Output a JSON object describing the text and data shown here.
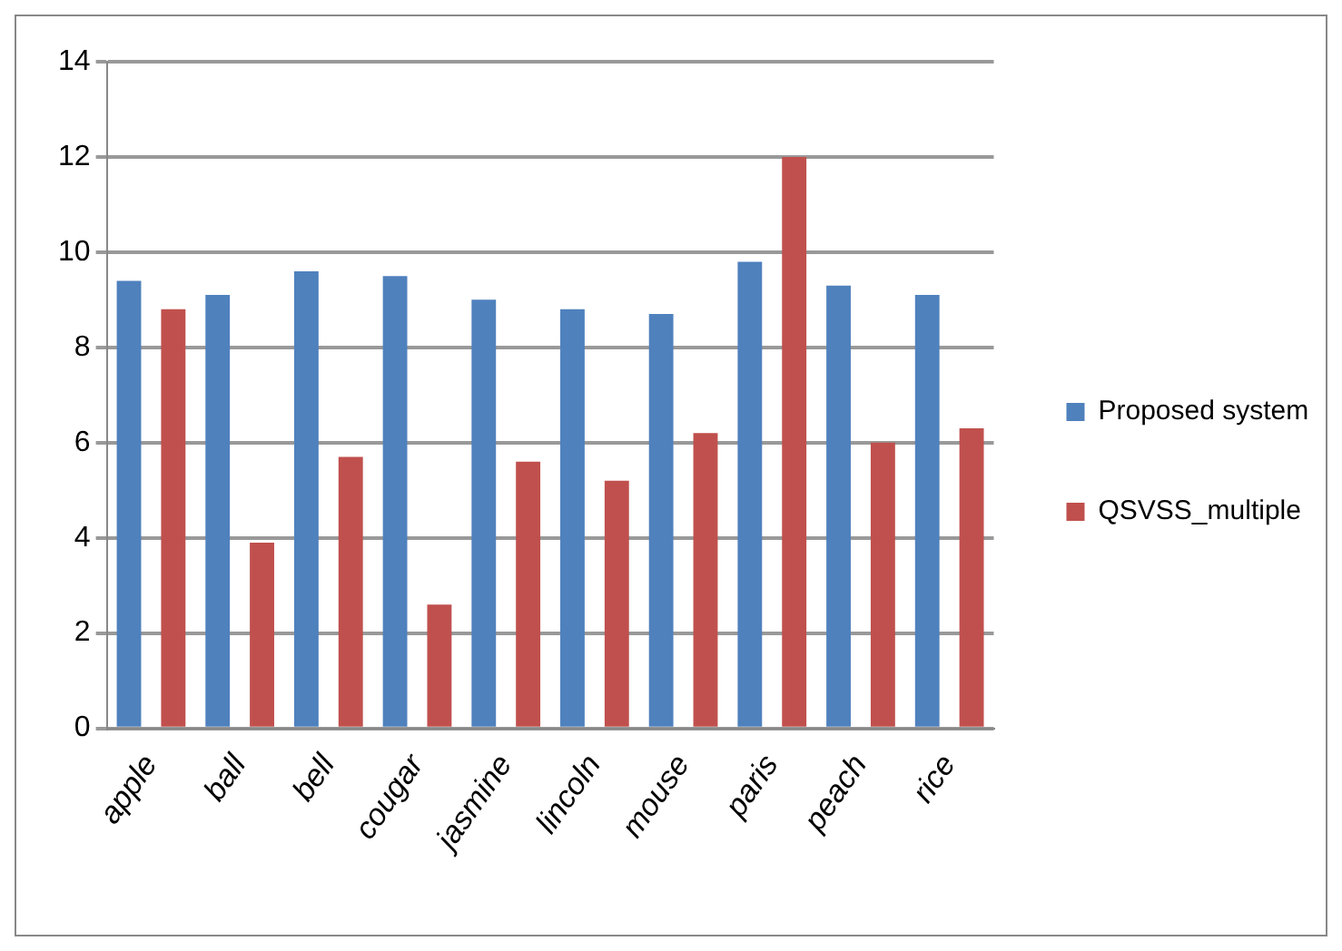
{
  "chart_data": {
    "type": "bar",
    "categories": [
      "apple",
      "ball",
      "bell",
      "cougar",
      "jasmine",
      "lincoln",
      "mouse",
      "paris",
      "peach",
      "rice"
    ],
    "series": [
      {
        "name": "Proposed system",
        "color": "#4f81bd",
        "values": [
          9.4,
          9.1,
          9.6,
          9.5,
          9.0,
          8.8,
          8.7,
          9.8,
          9.3,
          9.1
        ]
      },
      {
        "name": "QSVSS_multiple",
        "color": "#c0504d",
        "values": [
          8.8,
          3.9,
          5.7,
          2.6,
          5.6,
          5.2,
          6.2,
          12.0,
          6.0,
          6.3
        ]
      }
    ],
    "ylim": [
      0,
      14
    ],
    "yticks": [
      0,
      2,
      4,
      6,
      8,
      10,
      12,
      14
    ],
    "grid": "y",
    "legend": "right"
  }
}
